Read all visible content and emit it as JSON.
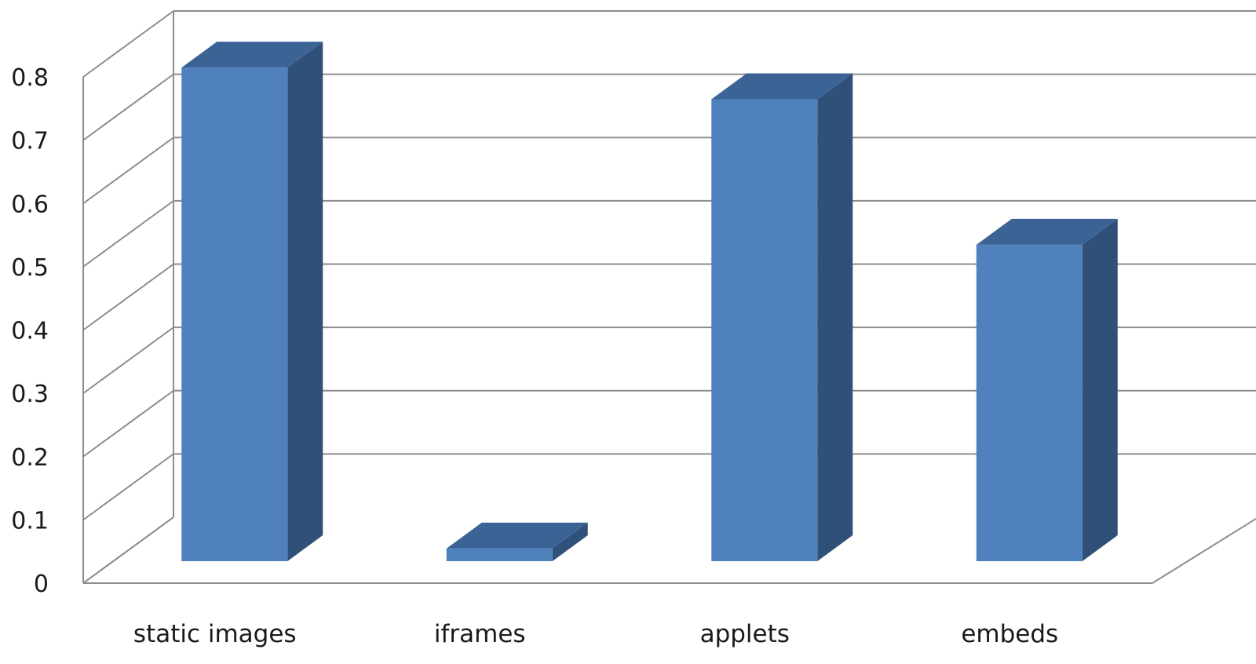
{
  "chart_data": {
    "type": "bar",
    "style": "3d-column",
    "categories": [
      "static images",
      "iframes",
      "applets",
      "embeds"
    ],
    "values": [
      0.78,
      0.02,
      0.73,
      0.5
    ],
    "ylim": [
      0,
      0.8
    ],
    "yticks": [
      "0",
      "0.1",
      "0.2",
      "0.3",
      "0.4",
      "0.5",
      "0.6",
      "0.7",
      "0.8"
    ],
    "grid": true,
    "legend": "none",
    "colors": {
      "bar_front": "#4F81BD",
      "bar_top": "#3B6396",
      "bar_side": "#2F5078",
      "grid": "#8C8C8C",
      "axis_text": "#1a1a1a"
    }
  }
}
